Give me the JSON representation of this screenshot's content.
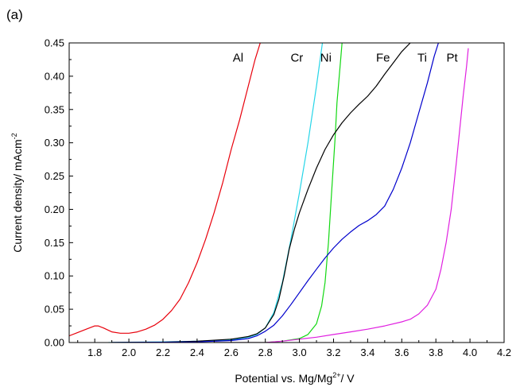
{
  "panel_label": "(a)",
  "chart_data": {
    "type": "line",
    "title": "",
    "xlabel": "Potential vs. Mg/Mg",
    "xlabel_sup": "2+",
    "xlabel_suffix": "/ V",
    "ylabel": "Current density/ mAcm",
    "ylabel_sup": "-2",
    "xlim": [
      1.65,
      4.2
    ],
    "ylim": [
      0.0,
      0.45
    ],
    "xticks": [
      "1.8",
      "2.0",
      "2.2",
      "2.4",
      "2.6",
      "2.8",
      "3.0",
      "3.2",
      "3.4",
      "3.6",
      "3.8",
      "4.0",
      "4.2"
    ],
    "yticks": [
      "0.00",
      "0.05",
      "0.10",
      "0.15",
      "0.20",
      "0.25",
      "0.30",
      "0.35",
      "0.40",
      "0.45"
    ],
    "grid": false,
    "legend": "none",
    "series": [
      {
        "name": "Al",
        "color": "#e8000b",
        "x": [
          1.65,
          1.7,
          1.75,
          1.8,
          1.82,
          1.85,
          1.9,
          1.95,
          2.0,
          2.05,
          2.1,
          2.15,
          2.2,
          2.25,
          2.3,
          2.35,
          2.4,
          2.45,
          2.5,
          2.55,
          2.6,
          2.65,
          2.7,
          2.74,
          2.77
        ],
        "y": [
          0.01,
          0.015,
          0.02,
          0.025,
          0.025,
          0.022,
          0.016,
          0.014,
          0.014,
          0.016,
          0.02,
          0.026,
          0.035,
          0.048,
          0.065,
          0.09,
          0.12,
          0.155,
          0.195,
          0.24,
          0.29,
          0.335,
          0.385,
          0.425,
          0.45
        ]
      },
      {
        "name": "Cr",
        "color": "#25d5e8",
        "x": [
          1.88,
          2.0,
          2.2,
          2.4,
          2.6,
          2.7,
          2.75,
          2.8,
          2.85,
          2.9,
          2.95,
          3.0,
          3.05,
          3.1,
          3.135
        ],
        "y": [
          0.0,
          0.0005,
          0.001,
          0.002,
          0.004,
          0.008,
          0.012,
          0.022,
          0.045,
          0.09,
          0.155,
          0.225,
          0.3,
          0.385,
          0.45
        ]
      },
      {
        "name": "Ni",
        "color": "#12d812",
        "x": [
          2.5,
          2.8,
          2.9,
          3.0,
          3.05,
          3.1,
          3.13,
          3.15,
          3.17,
          3.19,
          3.21,
          3.22,
          3.24,
          3.25
        ],
        "y": [
          0.0,
          0.0,
          0.002,
          0.006,
          0.012,
          0.028,
          0.055,
          0.09,
          0.15,
          0.23,
          0.31,
          0.36,
          0.42,
          0.45
        ]
      },
      {
        "name": "Fe",
        "color": "#000000",
        "x": [
          1.9,
          2.2,
          2.4,
          2.6,
          2.7,
          2.75,
          2.8,
          2.85,
          2.88,
          2.91,
          2.94,
          2.97,
          3.0,
          3.05,
          3.1,
          3.15,
          3.2,
          3.25,
          3.3,
          3.35,
          3.4,
          3.45,
          3.5,
          3.55,
          3.6,
          3.65
        ],
        "y": [
          0.0,
          0.0005,
          0.002,
          0.005,
          0.009,
          0.013,
          0.022,
          0.042,
          0.065,
          0.1,
          0.14,
          0.17,
          0.195,
          0.23,
          0.262,
          0.29,
          0.312,
          0.33,
          0.345,
          0.358,
          0.37,
          0.385,
          0.403,
          0.42,
          0.437,
          0.45
        ]
      },
      {
        "name": "Ti",
        "color": "#0000cc",
        "x": [
          1.9,
          2.2,
          2.4,
          2.6,
          2.7,
          2.75,
          2.8,
          2.85,
          2.9,
          2.95,
          3.0,
          3.05,
          3.1,
          3.15,
          3.2,
          3.25,
          3.3,
          3.35,
          3.4,
          3.45,
          3.5,
          3.55,
          3.6,
          3.65,
          3.7,
          3.75,
          3.79,
          3.815
        ],
        "y": [
          0.0,
          0.0005,
          0.001,
          0.003,
          0.006,
          0.01,
          0.017,
          0.026,
          0.04,
          0.057,
          0.075,
          0.093,
          0.11,
          0.127,
          0.142,
          0.155,
          0.166,
          0.176,
          0.183,
          0.192,
          0.205,
          0.23,
          0.262,
          0.3,
          0.345,
          0.39,
          0.43,
          0.45
        ]
      },
      {
        "name": "Pt",
        "color": "#e020e0",
        "x": [
          2.5,
          2.8,
          2.9,
          3.0,
          3.1,
          3.2,
          3.3,
          3.4,
          3.5,
          3.6,
          3.65,
          3.7,
          3.75,
          3.8,
          3.83,
          3.86,
          3.89,
          3.92,
          3.94,
          3.96,
          3.98,
          3.99
        ],
        "y": [
          0.0,
          0.0,
          0.002,
          0.005,
          0.008,
          0.012,
          0.016,
          0.02,
          0.025,
          0.031,
          0.035,
          0.043,
          0.056,
          0.08,
          0.11,
          0.15,
          0.2,
          0.27,
          0.32,
          0.37,
          0.415,
          0.442
        ]
      }
    ],
    "annotations": [
      {
        "text": "Al",
        "x": 2.64,
        "y": 0.422
      },
      {
        "text": "Cr",
        "x": 2.985,
        "y": 0.422
      },
      {
        "text": "Ni",
        "x": 3.155,
        "y": 0.422
      },
      {
        "text": "Fe",
        "x": 3.49,
        "y": 0.422
      },
      {
        "text": "Ti",
        "x": 3.72,
        "y": 0.422
      },
      {
        "text": "Pt",
        "x": 3.895,
        "y": 0.422
      }
    ]
  }
}
